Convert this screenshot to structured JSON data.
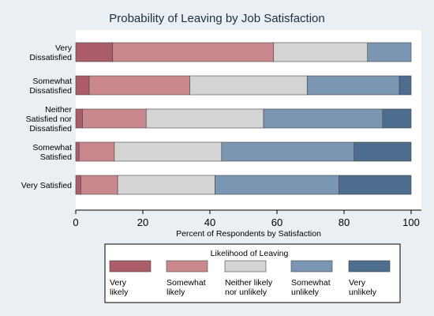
{
  "chart_data": {
    "type": "bar",
    "orientation": "horizontal",
    "stacked": true,
    "title": "Probability of Leaving by Job Satisfaction",
    "xlabel": "Percent of Respondents by Satisfaction",
    "ylabel": "",
    "xlim": [
      0,
      100
    ],
    "xticks": [
      0,
      20,
      40,
      60,
      80,
      100
    ],
    "grid": false,
    "legend_position": "bottom",
    "legend_title": "Likelihood of Leaving",
    "categories": [
      [
        "Very",
        "Dissatisfied"
      ],
      [
        "Somewhat",
        "Dissatisfied"
      ],
      [
        "Neither",
        "Satisfied nor",
        "Dissatisfied"
      ],
      [
        "Somewhat",
        "Satisfied"
      ],
      [
        "Very Satisfied"
      ]
    ],
    "series": [
      {
        "name": [
          "Very",
          "likely"
        ],
        "color": "#ab5d69",
        "values": [
          11,
          4,
          2,
          1,
          1.5
        ]
      },
      {
        "name": [
          "Somewhat",
          "likely"
        ],
        "color": "#c8888d",
        "values": [
          48,
          30,
          19,
          10.5,
          11
        ]
      },
      {
        "name": [
          "Neither likely",
          "nor unlikely"
        ],
        "color": "#d4d4d4",
        "values": [
          28,
          35,
          35,
          32,
          29
        ]
      },
      {
        "name": [
          "Somewhat",
          "unlikely"
        ],
        "color": "#7a96b2",
        "values": [
          13,
          27.5,
          35.5,
          39.5,
          37
        ]
      },
      {
        "name": [
          "Very",
          "unlikely"
        ],
        "color": "#4d6d8e",
        "values": [
          0,
          3.5,
          8.5,
          17,
          21.5
        ]
      }
    ]
  }
}
